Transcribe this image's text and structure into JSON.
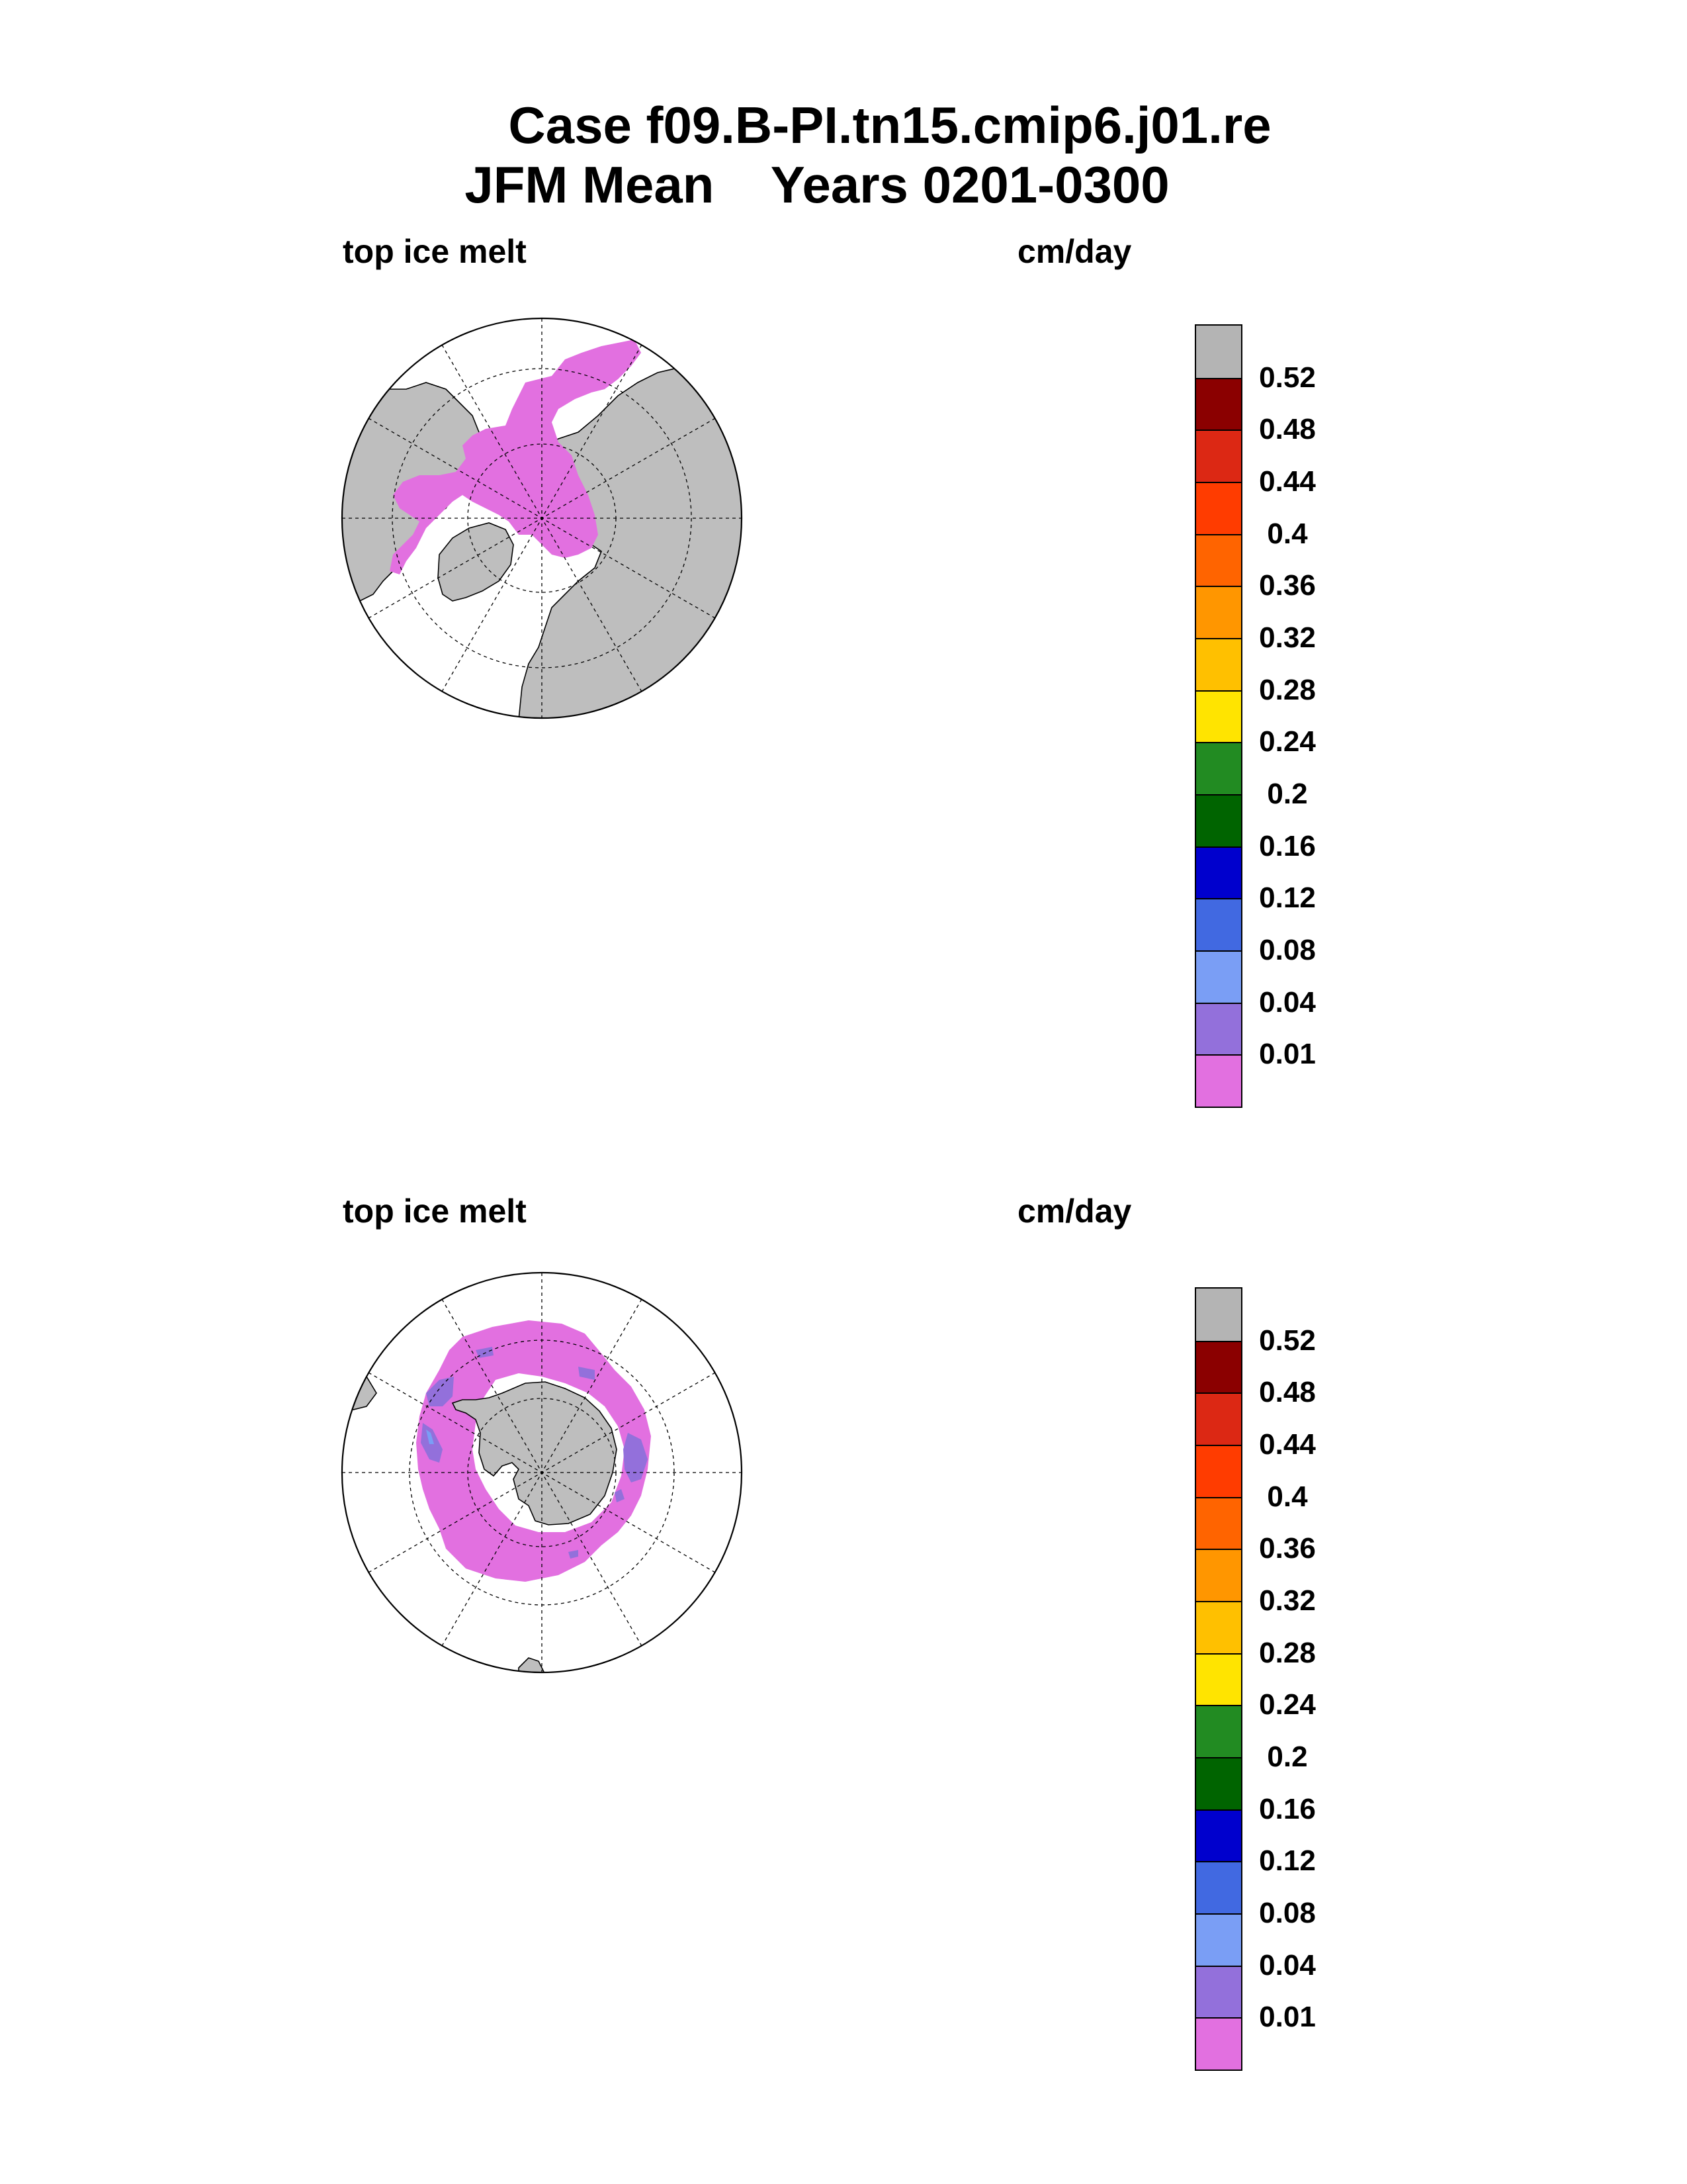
{
  "header": {
    "case_line": "Case f09.B-PI.tn15.cmip6.j01.re",
    "season": "JFM Mean",
    "years": "Years 0201-0300"
  },
  "panels": [
    {
      "id": "north",
      "variable": "top ice melt",
      "units": "cm/day",
      "hemisphere": "north"
    },
    {
      "id": "south",
      "variable": "top ice melt",
      "units": "cm/day",
      "hemisphere": "south"
    }
  ],
  "colorbar": {
    "levels": [
      "0.52",
      "0.48",
      "0.44",
      "0.4",
      "0.36",
      "0.32",
      "0.28",
      "0.24",
      "0.2",
      "0.16",
      "0.12",
      "0.08",
      "0.04",
      "0.01"
    ],
    "colors": [
      "#b4b4b4",
      "#8b0000",
      "#dc2814",
      "#ff3c00",
      "#ff6400",
      "#ff9600",
      "#ffc000",
      "#ffe400",
      "#228b22",
      "#006400",
      "#0000cd",
      "#4169e1",
      "#7a9ef5",
      "#9370db",
      "#e270e0"
    ]
  },
  "map_colors": {
    "land": "#bebebe",
    "ocean": "#ffffff",
    "ice_melt_low": "#e270e0",
    "ice_melt_mid": "#9370db",
    "ice_melt_light": "#7a9ef5"
  }
}
